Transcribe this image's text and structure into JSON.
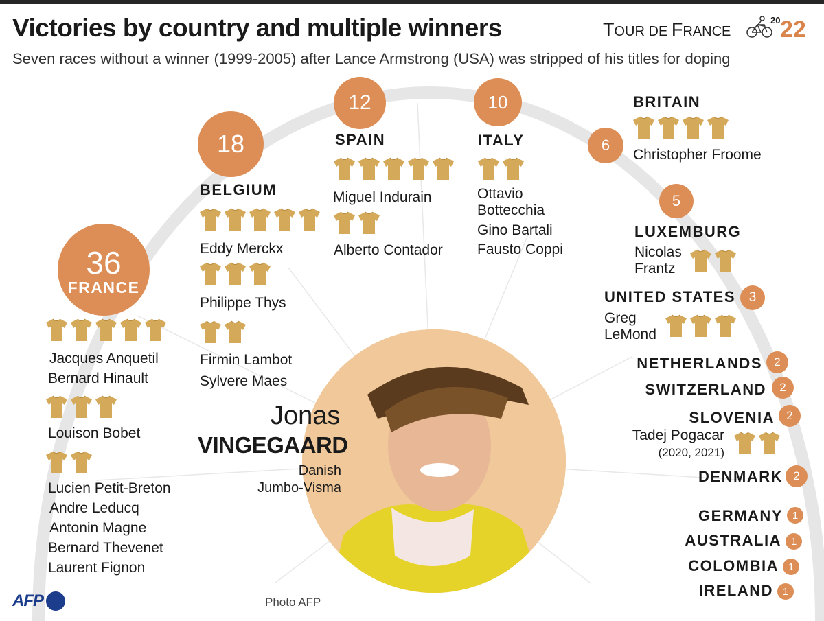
{
  "header": {
    "title": "Victories by country and multiple winners",
    "subtitle": "Seven races without a winner (1999-2005) after Lance Armstrong (USA) was stripped of his titles for doping",
    "brand_word1": "T",
    "brand_word1_rest": "OUR DE ",
    "brand_word2": "F",
    "brand_word2_rest": "RANCE",
    "brand_year_top": "20",
    "brand_year_bottom": "22"
  },
  "colors": {
    "accent": "#dd8e56",
    "jersey": "#d4a95a",
    "arc": "#e6e6e6",
    "brand": "#1c3c8c"
  },
  "countries": {
    "france": {
      "name": "FRANCE",
      "wins": "36"
    },
    "belgium": {
      "name": "BELGIUM",
      "wins": "18"
    },
    "spain": {
      "name": "SPAIN",
      "wins": "12"
    },
    "italy": {
      "name": "ITALY",
      "wins": "10"
    },
    "britain": {
      "name": "BRITAIN",
      "wins": "6"
    },
    "luxemburg": {
      "name": "LUXEMBURG",
      "wins": "5"
    },
    "usa": {
      "name": "UNITED STATES",
      "wins": "3"
    },
    "netherlands": {
      "name": "NETHERLANDS",
      "wins": "2"
    },
    "switzerland": {
      "name": "SWITZERLAND",
      "wins": "2"
    },
    "slovenia": {
      "name": "SLOVENIA",
      "wins": "2"
    },
    "denmark": {
      "name": "DENMARK",
      "wins": "2"
    },
    "germany": {
      "name": "GERMANY",
      "wins": "1"
    },
    "australia": {
      "name": "AUSTRALIA",
      "wins": "1"
    },
    "colombia": {
      "name": "COLOMBIA",
      "wins": "1"
    },
    "ireland": {
      "name": "IRELAND",
      "wins": "1"
    }
  },
  "winners": {
    "anquetil": "Jacques Anquetil",
    "hinault": "Bernard Hinault",
    "bobet": "Louison Bobet",
    "petit_breton": "Lucien Petit-Breton",
    "leducq": "Andre Leducq",
    "magne": "Antonin Magne",
    "thevenet": "Bernard Thevenet",
    "fignon": "Laurent Fignon",
    "merckx": "Eddy Merckx",
    "thys": "Philippe Thys",
    "lambot": "Firmin Lambot",
    "maes": "Sylvere Maes",
    "indurain": "Miguel Indurain",
    "contador": "Alberto Contador",
    "bottecchia_1": "Ottavio",
    "bottecchia_2": "Bottecchia",
    "bartali": "Gino Bartali",
    "coppi": "Fausto Coppi",
    "froome": "Christopher Froome",
    "frantz_1": "Nicolas",
    "frantz_2": "Frantz",
    "lemond_1": "Greg",
    "lemond_2": "LeMond",
    "pogacar": "Tadej Pogacar",
    "pogacar_years": "(2020, 2021)"
  },
  "feature": {
    "first_name": "Jonas",
    "last_name": "VINGEGAARD",
    "nationality": "Danish",
    "team": "Jumbo-Visma"
  },
  "credits": {
    "photo": "Photo AFP",
    "agency": "AFP"
  }
}
